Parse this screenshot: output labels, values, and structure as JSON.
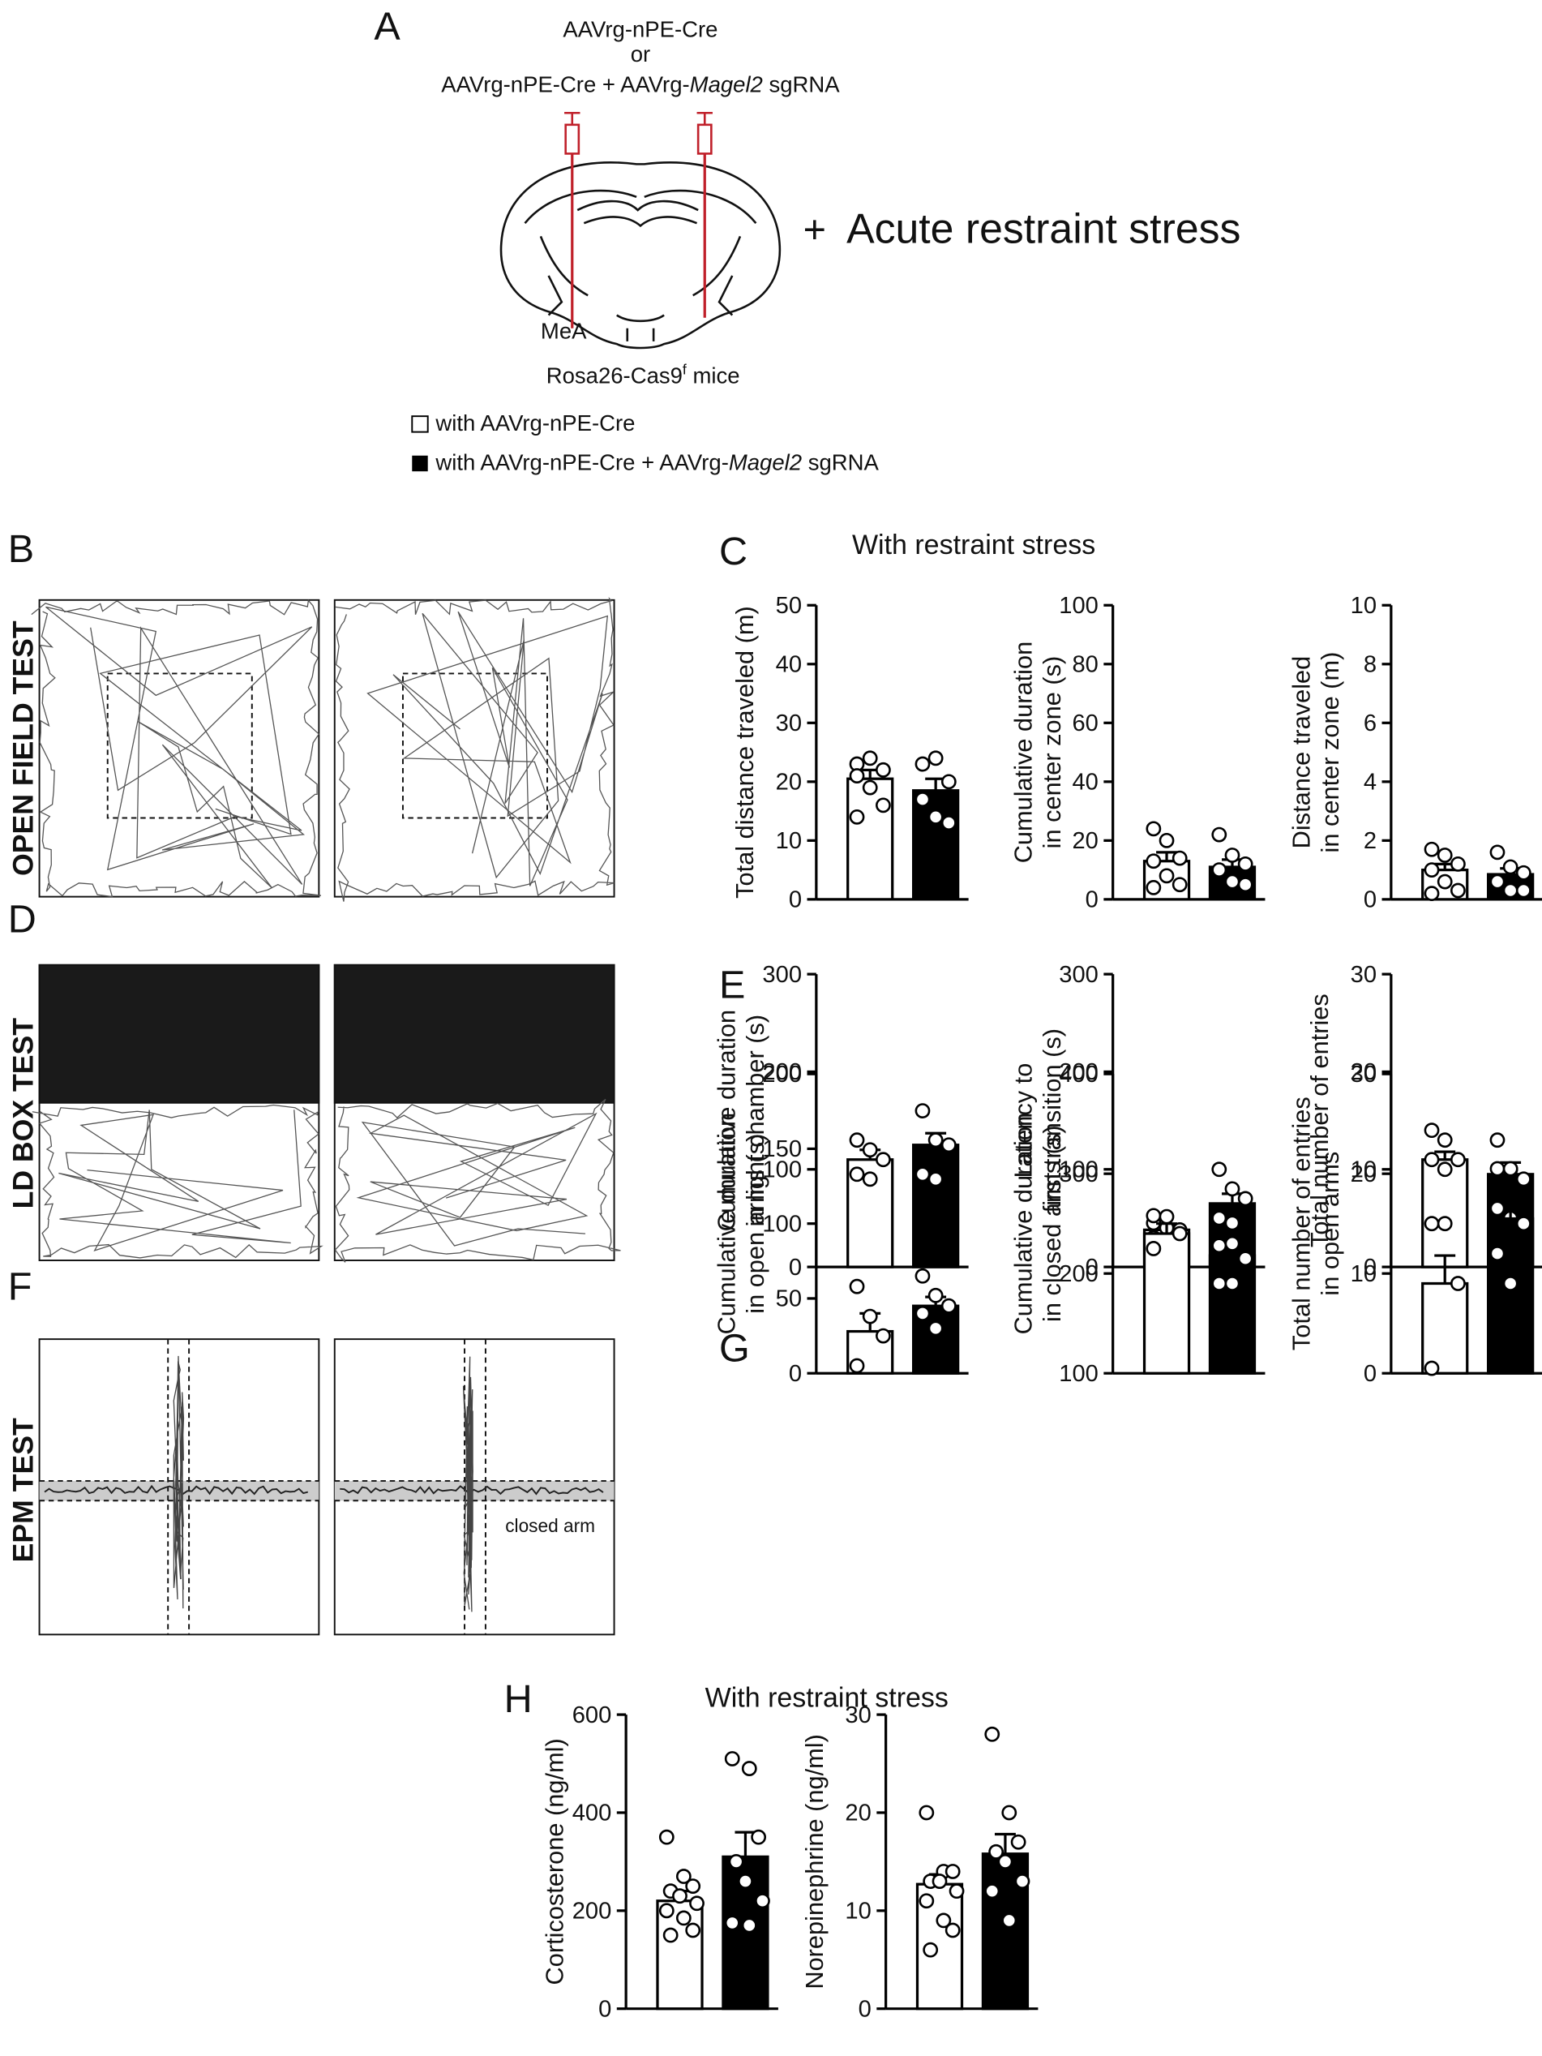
{
  "figure": {
    "panels": [
      "A",
      "B",
      "C",
      "D",
      "E",
      "F",
      "G",
      "H"
    ],
    "injection": [
      "AAVrg-nPE-Cre",
      "or",
      [
        "AAVrg-nPE-Cre + AAVrg-",
        "Magel2",
        " sgRNA"
      ]
    ],
    "region": "MeA",
    "mice": [
      "Rosa26-Cas9",
      "f",
      " mice"
    ],
    "stress": [
      "+",
      "Acute restraint stress"
    ],
    "legend": [
      {
        "name": "with AAVrg-nPE-Cre",
        "color": "#ffffff"
      },
      {
        "name": [
          "with AAVrg-nPE-Cre + AAVrg-",
          "Magel2",
          " sgRNA"
        ],
        "color": "#000000"
      }
    ],
    "tests": [
      "OPEN FIELD TEST",
      "LD BOX TEST",
      "EPM TEST"
    ],
    "closed_arm": "closed arm"
  },
  "chart_data": [
    {
      "type": "bar",
      "title": "With restraint stress",
      "ylabel": [
        "Total distance traveled (m)"
      ],
      "ylim": [
        0,
        50
      ],
      "yticks": [
        0,
        10,
        20,
        30,
        40,
        50
      ],
      "colors": [
        "#ffffff",
        "#000000"
      ],
      "values": [
        20.5,
        18.5
      ],
      "errors": [
        1.5,
        2
      ],
      "points": [
        [
          23,
          24,
          22,
          21,
          19,
          16,
          14
        ],
        [
          23,
          24,
          20,
          17,
          14,
          13
        ]
      ]
    },
    {
      "type": "bar",
      "ylabel": [
        "Cumulative duration",
        "in  center zone (s)"
      ],
      "ylim": [
        0,
        100
      ],
      "yticks": [
        0,
        20,
        40,
        60,
        80,
        100
      ],
      "colors": [
        "#ffffff",
        "#000000"
      ],
      "values": [
        13,
        11
      ],
      "errors": [
        3,
        2.5
      ],
      "points": [
        [
          24,
          20,
          14,
          13,
          8,
          5,
          4
        ],
        [
          22,
          15,
          12,
          10,
          6,
          5
        ]
      ]
    },
    {
      "type": "bar",
      "ylabel": [
        "Distance traveled",
        "in center zone (m)"
      ],
      "ylim": [
        0,
        10
      ],
      "yticks": [
        0,
        2,
        4,
        6,
        8,
        10
      ],
      "colors": [
        "#ffffff",
        "#000000"
      ],
      "values": [
        1.0,
        0.85
      ],
      "errors": [
        0.2,
        0.2
      ],
      "points": [
        [
          1.7,
          1.5,
          1.2,
          1.0,
          0.6,
          0.3,
          0.2
        ],
        [
          1.6,
          1.1,
          0.9,
          0.6,
          0.3,
          0.3
        ]
      ]
    },
    {
      "type": "bar",
      "ylabel": [
        "Cumulative duration",
        "in light chamber (s)"
      ],
      "ylim": [
        0,
        300
      ],
      "yticks": [
        0,
        100,
        200,
        300
      ],
      "colors": [
        "#ffffff",
        "#000000"
      ],
      "values": [
        110,
        125
      ],
      "errors": [
        10,
        12
      ],
      "points": [
        [
          130,
          120,
          110,
          95,
          90
        ],
        [
          160,
          130,
          125,
          95,
          90
        ]
      ]
    },
    {
      "type": "bar",
      "ylabel": [
        "Latency to",
        "first transition (s)"
      ],
      "ylim": [
        0,
        300
      ],
      "yticks": [
        0,
        100,
        200,
        300
      ],
      "colors": [
        "#ffffff",
        "#000000"
      ],
      "values": [
        38,
        65
      ],
      "errors": [
        5,
        10
      ],
      "points": [
        [
          45,
          40,
          38,
          30,
          25
        ],
        [
          100,
          80,
          70,
          50,
          45
        ]
      ]
    },
    {
      "type": "bar",
      "ylabel": [
        "Total number of entries"
      ],
      "ylim": [
        0,
        30
      ],
      "yticks": [
        0,
        10,
        20,
        30
      ],
      "colors": [
        "#ffffff",
        "#000000"
      ],
      "values": [
        11,
        9.5
      ],
      "errors": [
        0.8,
        1.2
      ],
      "points": [
        [
          14,
          13,
          11,
          11,
          10
        ],
        [
          13,
          10,
          9,
          6,
          5
        ]
      ]
    },
    {
      "type": "bar",
      "ylabel": [
        "Cumulative duration",
        "in open arms (s)"
      ],
      "ylim": [
        0,
        200
      ],
      "yticks": [
        0,
        50,
        100,
        150,
        200
      ],
      "colors": [
        "#ffffff",
        "#000000"
      ],
      "values": [
        28,
        45
      ],
      "errors": [
        12,
        6
      ],
      "points": [
        [
          58,
          38,
          25,
          5
        ],
        [
          65,
          52,
          45,
          40,
          30
        ]
      ]
    },
    {
      "type": "bar",
      "ylabel": [
        "Cumulative duration",
        "in closed arms (s)"
      ],
      "ylim": [
        100,
        400
      ],
      "yticks": [
        100,
        200,
        300,
        400
      ],
      "colors": [
        "#ffffff",
        "#000000"
      ],
      "values": [
        240,
        218
      ],
      "errors": [
        10,
        10
      ],
      "points": [
        [
          258,
          257,
          240,
          225
        ],
        [
          228,
          230,
          215,
          190,
          190
        ]
      ]
    },
    {
      "type": "bar",
      "ylabel": [
        "Total number of entries",
        "in open arms"
      ],
      "ylim": [
        0,
        30
      ],
      "yticks": [
        0,
        10,
        20,
        30
      ],
      "colors": [
        "#ffffff",
        "#000000"
      ],
      "values": [
        9,
        15.5
      ],
      "errors": [
        2.8,
        2.3
      ],
      "points": [
        [
          15,
          15,
          9,
          0.5
        ],
        [
          20.5,
          20.5,
          15,
          12,
          9
        ]
      ]
    },
    {
      "type": "bar",
      "title": "With restraint stress",
      "ylabel": [
        "Corticosterone (ng/ml)"
      ],
      "ylim": [
        0,
        600
      ],
      "yticks": [
        0,
        200,
        400,
        600
      ],
      "colors": [
        "#ffffff",
        "#000000"
      ],
      "values": [
        220,
        310
      ],
      "errors": [
        20,
        50
      ],
      "points": [
        [
          350,
          270,
          250,
          240,
          230,
          215,
          200,
          185,
          160,
          150
        ],
        [
          510,
          490,
          350,
          300,
          260,
          220,
          175,
          170
        ]
      ]
    },
    {
      "type": "bar",
      "ylabel": [
        "Norepinephrine (ng/ml)"
      ],
      "ylim": [
        0,
        30
      ],
      "yticks": [
        0,
        10,
        20,
        30
      ],
      "colors": [
        "#ffffff",
        "#000000"
      ],
      "values": [
        12.7,
        15.8
      ],
      "errors": [
        1,
        2
      ],
      "points": [
        [
          20,
          14,
          14,
          13,
          13,
          12,
          11,
          9,
          8,
          6
        ],
        [
          28,
          20,
          17,
          16,
          15,
          13,
          12,
          9
        ]
      ]
    }
  ]
}
